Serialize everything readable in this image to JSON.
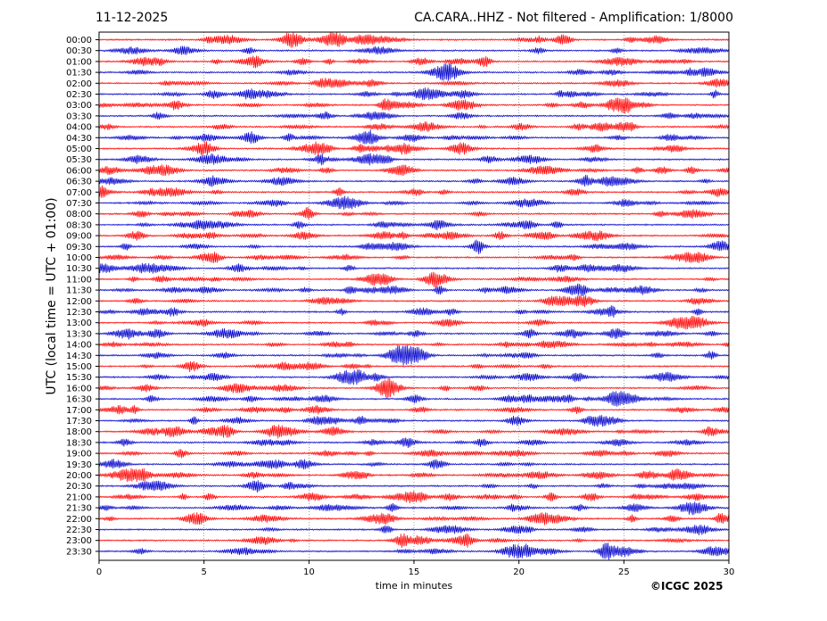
{
  "header": {
    "date": "11-12-2025",
    "title": "CA.CARA..HHZ - Not filtered - Amplification: 1/8000"
  },
  "footer": {
    "copyright": "©ICGC 2025"
  },
  "chart_data": {
    "type": "line",
    "title": "CA.CARA..HHZ - Not filtered - Amplification: 1/8000",
    "xlabel": "time in minutes",
    "ylabel": "UTC (local time = UTC + 01:00)",
    "xlim": [
      0,
      30
    ],
    "x_ticks": [
      0,
      5,
      10,
      15,
      20,
      25,
      30
    ],
    "x_tick_labels": [
      "0",
      "5",
      "10",
      "15",
      "20",
      "25",
      "30"
    ],
    "grid": "vertical dotted lines at each x tick",
    "row_labels": [
      "00:00",
      "00:30",
      "01:00",
      "01:30",
      "02:00",
      "02:30",
      "03:00",
      "03:30",
      "04:00",
      "04:30",
      "05:00",
      "05:30",
      "06:00",
      "06:30",
      "07:00",
      "07:30",
      "08:00",
      "08:30",
      "09:00",
      "09:30",
      "10:00",
      "10:30",
      "11:00",
      "11:30",
      "12:00",
      "12:30",
      "13:00",
      "13:30",
      "14:00",
      "14:30",
      "15:00",
      "15:30",
      "16:00",
      "16:30",
      "17:00",
      "17:30",
      "18:00",
      "18:30",
      "19:00",
      "19:30",
      "20:00",
      "20:30",
      "21:00",
      "21:30",
      "22:00",
      "22:30",
      "23:00",
      "23:30"
    ],
    "trace_colors": [
      "#ff0000",
      "#0000cc"
    ],
    "color_pattern": "alternating red (full hour) / blue (half hour)",
    "signal": "continuous low-amplitude seismic noise with wave-packet bursts, no major events"
  }
}
